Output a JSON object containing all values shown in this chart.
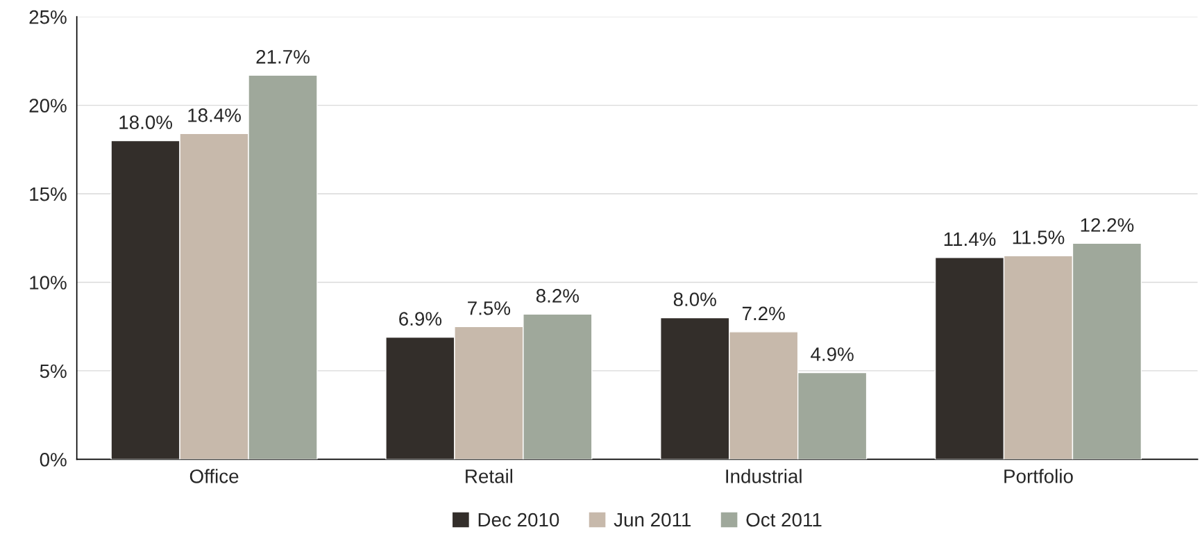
{
  "chart_data": {
    "type": "bar",
    "categories": [
      "Office",
      "Retail",
      "Industrial",
      "Portfolio"
    ],
    "series": [
      {
        "name": "Dec 2010",
        "color": "#332e2a",
        "values": [
          18.0,
          6.9,
          8.0,
          11.4
        ],
        "value_labels": [
          "18.0%",
          "6.9%",
          "8.0%",
          "11.4%"
        ]
      },
      {
        "name": "Jun 2011",
        "color": "#c7b9ab",
        "values": [
          18.4,
          7.5,
          7.2,
          11.5
        ],
        "value_labels": [
          "18.4%",
          "7.5%",
          "7.2%",
          "11.5%"
        ]
      },
      {
        "name": "Oct 2011",
        "color": "#9fa89b",
        "values": [
          21.7,
          8.2,
          4.9,
          12.2
        ],
        "value_labels": [
          "21.7%",
          "8.2%",
          "4.9%",
          "12.2%"
        ]
      }
    ],
    "ylim": [
      0,
      25
    ],
    "yticks": [
      {
        "value": 0,
        "label": "0%"
      },
      {
        "value": 5,
        "label": "5%"
      },
      {
        "value": 10,
        "label": "10%"
      },
      {
        "value": 15,
        "label": "15%"
      },
      {
        "value": 20,
        "label": "20%"
      },
      {
        "value": 25,
        "label": "25%"
      }
    ],
    "grid": "y",
    "legend": "bottom"
  }
}
